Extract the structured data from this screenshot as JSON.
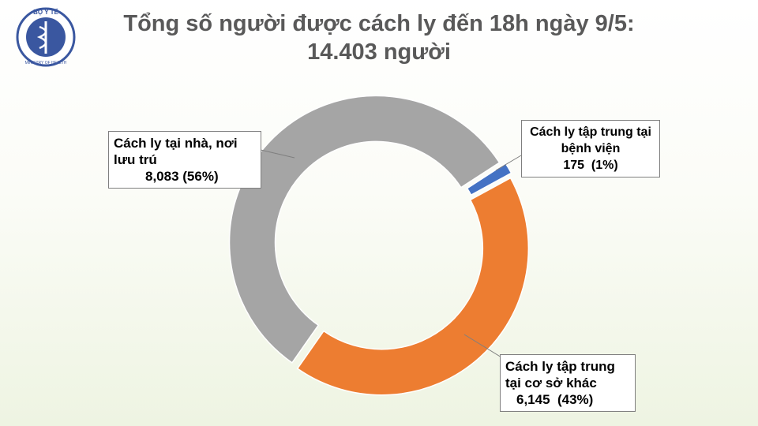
{
  "logo": {
    "top": "BỘ Y TẾ",
    "bottom": "MINISTRY OF HEALTH"
  },
  "chart_data": {
    "type": "donut",
    "title": "Tổng số người được cách ly đến 18h ngày 9/5:",
    "subtitle": "14.403 người",
    "categories": [
      "Cách ly tập trung tại bệnh viện",
      "Cách ly tập trung tại cơ sở khác",
      "Cách ly tại nhà, nơi lưu trú"
    ],
    "values": [
      175,
      6145,
      8083
    ],
    "value_labels": [
      "175  (1%)",
      "6,145  (43%)",
      "8,083 (56%)"
    ],
    "colors": [
      "#4472c4",
      "#ed7d31",
      "#a5a5a5"
    ]
  }
}
